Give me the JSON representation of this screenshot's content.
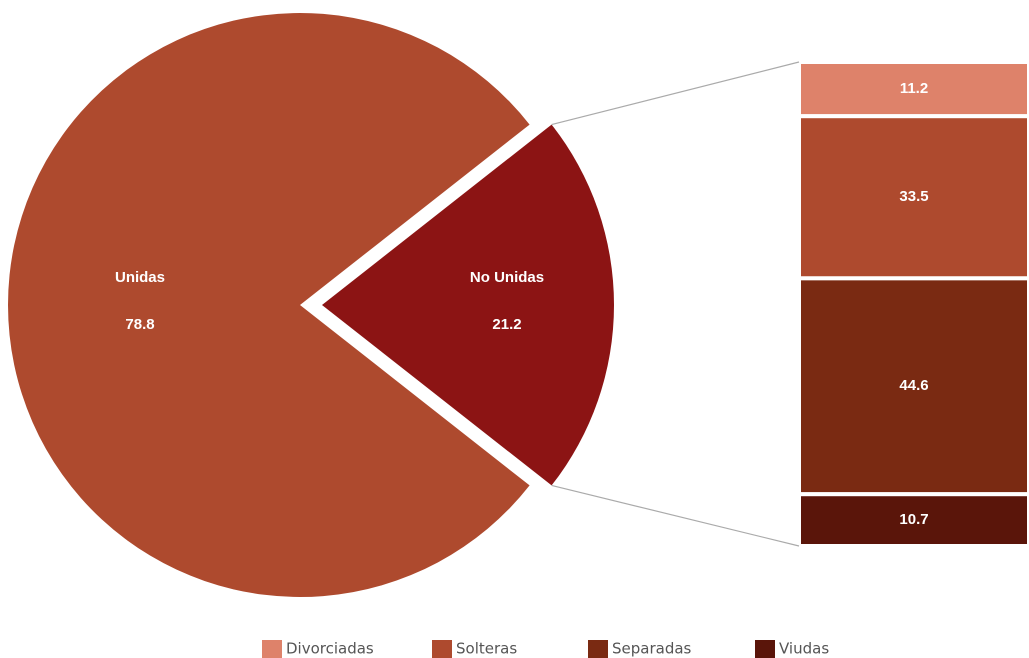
{
  "chart_data": {
    "type": "pie-of-bar",
    "pie": {
      "categories": [
        "Unidas",
        "No Unidas"
      ],
      "values": [
        78.8,
        21.2
      ],
      "colors": [
        "#ae4a2e",
        "#8c1414"
      ]
    },
    "series": [
      {
        "name": "Divorciadas",
        "color": "#de826a",
        "values": [
          11.2
        ]
      },
      {
        "name": "Solteras",
        "color": "#ae4a2e",
        "values": [
          33.5
        ]
      },
      {
        "name": "Separadas",
        "color": "#7a2a12",
        "values": [
          44.6
        ]
      },
      {
        "name": "Viudas",
        "color": "#5a150a",
        "values": [
          10.7
        ]
      }
    ],
    "legend": "bottom"
  }
}
